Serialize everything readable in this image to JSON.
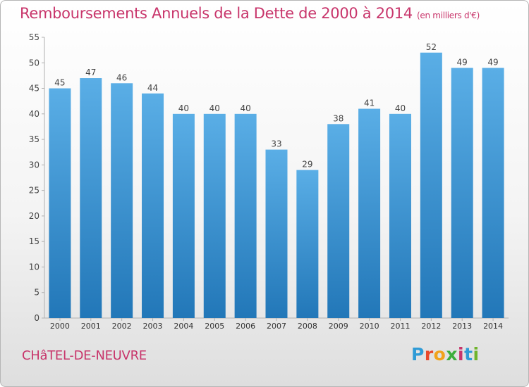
{
  "title": "Remboursements Annuels de la Dette de 2000 à 2014",
  "unit": "(en milliers d'€)",
  "commune": "CHâTEL-DE-NEUVRE",
  "logo": "Proxiti",
  "colors": {
    "title": "#c8356b",
    "bar_top": "#5aaee6",
    "bar_bottom": "#2277b8"
  },
  "chart_data": {
    "type": "bar",
    "title": "Remboursements Annuels de la Dette de 2000 à 2014",
    "xlabel": "",
    "ylabel": "",
    "categories": [
      "2000",
      "2001",
      "2002",
      "2003",
      "2004",
      "2005",
      "2006",
      "2007",
      "2008",
      "2009",
      "2010",
      "2011",
      "2012",
      "2013",
      "2014"
    ],
    "values": [
      45,
      47,
      46,
      44,
      40,
      40,
      40,
      33,
      29,
      38,
      41,
      40,
      52,
      49,
      49
    ],
    "ylim": [
      0,
      55
    ],
    "yticks": [
      0,
      5,
      10,
      15,
      20,
      25,
      30,
      35,
      40,
      45,
      50,
      55
    ],
    "grid": false,
    "data_labels": true
  }
}
